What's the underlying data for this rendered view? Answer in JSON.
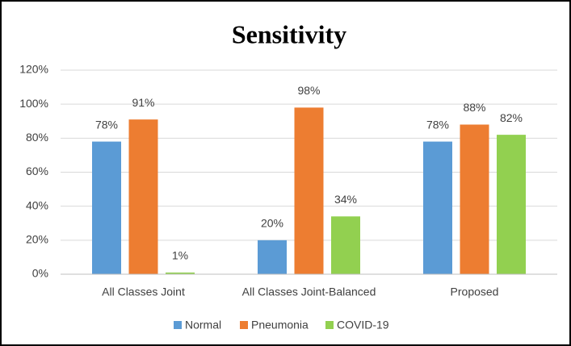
{
  "chart_data": {
    "type": "bar",
    "title": "Sensitivity",
    "categories": [
      "All Classes Joint",
      "All Classes Joint-Balanced",
      "Proposed"
    ],
    "series": [
      {
        "name": "Normal",
        "color": "#5b9bd5",
        "values": [
          78,
          20,
          78
        ],
        "value_labels": [
          "78%",
          "20%",
          "78%"
        ]
      },
      {
        "name": "Pneumonia",
        "color": "#ed7d31",
        "values": [
          91,
          98,
          88
        ],
        "value_labels": [
          "91%",
          "98%",
          "88%"
        ]
      },
      {
        "name": "COVID-19",
        "color": "#92d050",
        "values": [
          1,
          34,
          82
        ],
        "value_labels": [
          "1%",
          "34%",
          "82%"
        ]
      }
    ],
    "ylim": [
      0,
      120
    ],
    "yticks": [
      {
        "value": 0,
        "label": "0%"
      },
      {
        "value": 20,
        "label": "20%"
      },
      {
        "value": 40,
        "label": "40%"
      },
      {
        "value": 60,
        "label": "60%"
      },
      {
        "value": 80,
        "label": "80%"
      },
      {
        "value": 100,
        "label": "100%"
      },
      {
        "value": 120,
        "label": "120%"
      }
    ],
    "grid": true,
    "legend": "bottom"
  }
}
